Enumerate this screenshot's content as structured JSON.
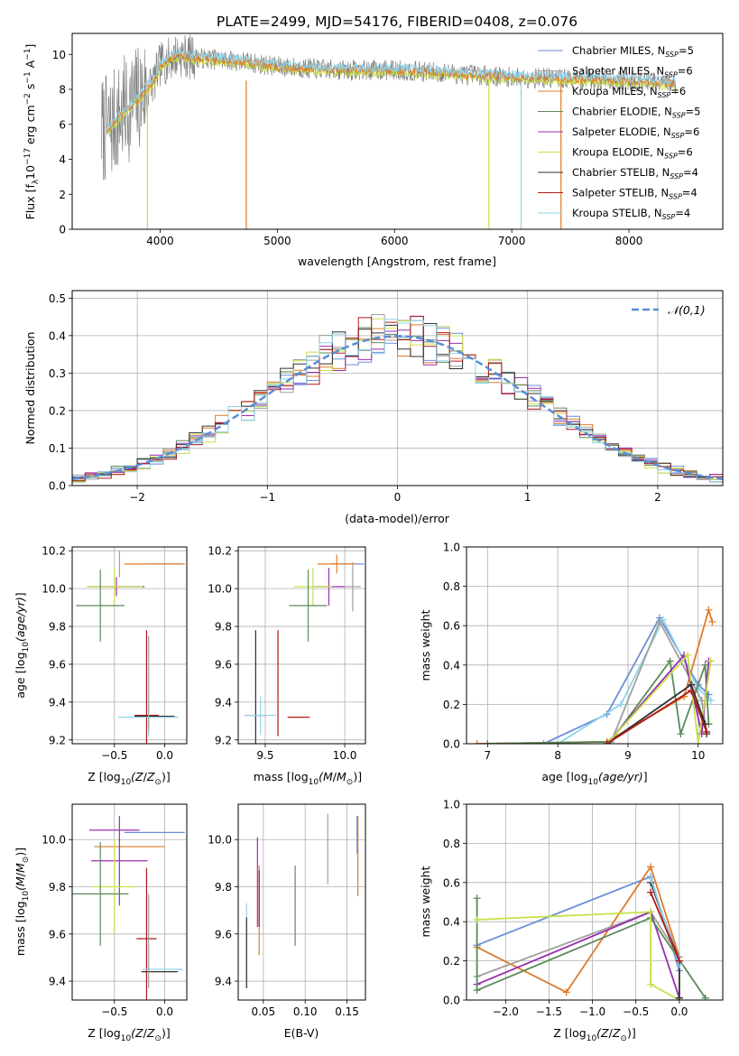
{
  "figure_title": "PLATE=2499, MJD=54176, FIBERID=0408, z=0.076",
  "series_styles": [
    {
      "name": "Chabrier MILES, N_SSP=5",
      "label_base": "Chabrier MILES, N",
      "label_sub": "SSP",
      "label_tail": "=5",
      "color": "#6a8fd6"
    },
    {
      "name": "Salpeter MILES, N_SSP=6",
      "label_base": "Salpeter MILES, N",
      "label_sub": "SSP",
      "label_tail": "=6",
      "color": "#a0a0a0"
    },
    {
      "name": "Kroupa MILES, N_SSP=6",
      "label_base": "Kroupa MILES, N",
      "label_sub": "SSP",
      "label_tail": "=6",
      "color": "#e07b28"
    },
    {
      "name": "Chabrier ELODIE, N_SSP=5",
      "label_base": "Chabrier ELODIE, N",
      "label_sub": "SSP",
      "label_tail": "=5",
      "color": "#5a8a5a"
    },
    {
      "name": "Salpeter ELODIE, N_SSP=6",
      "label_base": "Salpeter ELODIE, N",
      "label_sub": "SSP",
      "label_tail": "=6",
      "color": "#9a2fb0"
    },
    {
      "name": "Kroupa ELODIE, N_SSP=6",
      "label_base": "Kroupa ELODIE, N",
      "label_sub": "SSP",
      "label_tail": "=6",
      "color": "#c8e04a"
    },
    {
      "name": "Chabrier STELIB, N_SSP=4",
      "label_base": "Chabrier STELIB, N",
      "label_sub": "SSP",
      "label_tail": "=4",
      "color": "#303030"
    },
    {
      "name": "Salpeter STELIB, N_SSP=4",
      "label_base": "Salpeter STELIB, N",
      "label_sub": "SSP",
      "label_tail": "=4",
      "color": "#b01818"
    },
    {
      "name": "Kroupa STELIB, N_SSP=4",
      "label_base": "Kroupa STELIB, N",
      "label_sub": "SSP",
      "label_tail": "=4",
      "color": "#8fd3e8"
    }
  ],
  "chart_data": [
    {
      "id": "spectrum",
      "type": "line",
      "xlabel": "wavelength [Angstrom, rest frame]",
      "ylabel": "Flux [f_λ 10^-17 erg cm^-2 s^-1 A^-1]",
      "xlim": [
        3250,
        8800
      ],
      "ylim": [
        0,
        11.2
      ],
      "xticks": [
        4000,
        5000,
        6000,
        7000,
        8000
      ],
      "yticks": [
        0,
        2,
        4,
        6,
        8,
        10
      ],
      "grid": false,
      "legend": "upper right",
      "data_color": "#808080",
      "data_range": [
        3500,
        8400
      ],
      "model_profile": {
        "x": [
          3550,
          3600,
          3700,
          3800,
          3850,
          3950,
          4000,
          4150,
          4300,
          4500,
          4700,
          5000,
          5500,
          6000,
          6500,
          7000,
          7500,
          8000,
          8400
        ],
        "y": [
          5.7,
          6.0,
          6.8,
          7.4,
          7.8,
          8.5,
          9.4,
          10.0,
          9.8,
          9.7,
          9.6,
          9.3,
          9.1,
          9.1,
          8.9,
          8.7,
          8.6,
          8.5,
          8.3
        ]
      },
      "spikes": [
        {
          "x": 3892,
          "series": 5
        },
        {
          "x": 4735,
          "series": 2
        },
        {
          "x": 6805,
          "series": 5
        },
        {
          "x": 7080,
          "series": 8
        },
        {
          "x": 7420,
          "series": 2
        }
      ]
    },
    {
      "id": "residuals",
      "type": "bar",
      "xlabel": "(data-model)/error",
      "ylabel": "Normed distribution",
      "xlim": [
        -2.5,
        2.5
      ],
      "ylim": [
        0,
        0.52
      ],
      "xticks": [
        -2,
        -1,
        0,
        1,
        2
      ],
      "yticks": [
        0.0,
        0.1,
        0.2,
        0.3,
        0.4,
        0.5
      ],
      "bin_width": 0.1,
      "grid": true,
      "reference_curve": {
        "label": "𝒩(0,1)",
        "mean": 0,
        "sigma": 1,
        "color": "#5b8dd6"
      },
      "legend": "upper right"
    },
    {
      "id": "age-vs-Z",
      "type": "scatter",
      "xlabel": "Z [log10(Z/Z⊙)]",
      "ylabel": "age [log10(age/yr)]",
      "xlim": [
        -0.92,
        0.22
      ],
      "ylim": [
        9.18,
        10.22
      ],
      "xticks": [
        -0.5,
        0.0
      ],
      "yticks": [
        9.2,
        9.4,
        9.6,
        9.8,
        10.0,
        10.2
      ],
      "grid": true,
      "points": [
        {
          "series": 0,
          "x": 0.0,
          "y": 10.13,
          "xerr": 0.15,
          "yerr": 0.0
        },
        {
          "series": 2,
          "x": -0.1,
          "y": 10.13,
          "xerr": 0.3,
          "yerr": 0.0
        },
        {
          "series": 4,
          "x": -0.48,
          "y": 10.01,
          "xerr": 0.28,
          "yerr": 0.05
        },
        {
          "series": 5,
          "x": -0.5,
          "y": 10.01,
          "xerr": 0.28,
          "yerr": 0.1
        },
        {
          "series": 1,
          "x": -0.45,
          "y": 10.13,
          "xerr": 0.0,
          "yerr": 0.07
        },
        {
          "series": 3,
          "x": -0.64,
          "y": 9.91,
          "xerr": 0.24,
          "yerr": 0.19
        },
        {
          "series": 7,
          "x": -0.18,
          "y": 9.33,
          "xerr": 0.12,
          "yerr": 0.45
        },
        {
          "series": 6,
          "x": -0.1,
          "y": 9.325,
          "xerr": 0.2,
          "yerr": 0.0
        },
        {
          "series": 8,
          "x": -0.16,
          "y": 9.32,
          "xerr": 0.3,
          "yerr": 0.1
        },
        {
          "series": 1,
          "x": -0.16,
          "y": 9.5,
          "xerr": 0.0,
          "yerr": 0.25
        }
      ]
    },
    {
      "id": "age-vs-mass",
      "type": "scatter",
      "xlabel": "mass [log10(M/M⊙)]",
      "ylabel": "",
      "xlim": [
        9.33,
        10.13
      ],
      "ylim": [
        9.18,
        10.22
      ],
      "xticks": [
        9.5,
        10.0
      ],
      "yticks": [
        9.2,
        9.4,
        9.6,
        9.8,
        10.0,
        10.2
      ],
      "grid": true,
      "points": [
        {
          "series": 0,
          "x": 10.02,
          "y": 10.13,
          "xerr": 0.1,
          "yerr": 0.0
        },
        {
          "series": 2,
          "x": 9.95,
          "y": 10.13,
          "xerr": 0.12,
          "yerr": 0.05
        },
        {
          "series": 4,
          "x": 9.9,
          "y": 10.01,
          "xerr": 0.1,
          "yerr": 0.1
        },
        {
          "series": 5,
          "x": 9.8,
          "y": 10.01,
          "xerr": 0.12,
          "yerr": 0.1
        },
        {
          "series": 1,
          "x": 10.05,
          "y": 10.01,
          "xerr": 0.05,
          "yerr": 0.13
        },
        {
          "series": 3,
          "x": 9.77,
          "y": 9.91,
          "xerr": 0.12,
          "yerr": 0.19
        },
        {
          "series": 6,
          "x": 9.44,
          "y": 9.33,
          "xerr": 0.07,
          "yerr": 0.45
        },
        {
          "series": 8,
          "x": 9.47,
          "y": 9.33,
          "xerr": 0.1,
          "yerr": 0.1
        },
        {
          "series": 7,
          "x": 9.58,
          "y": 9.5,
          "xerr": 0.0,
          "yerr": 0.28
        },
        {
          "series": 7,
          "x": 9.71,
          "y": 9.32,
          "xerr": 0.07,
          "yerr": 0.0
        }
      ]
    },
    {
      "id": "massweight-vs-age",
      "type": "line",
      "xlabel": "age [log10(age/yr)]",
      "ylabel": "mass weight",
      "xlim": [
        6.7,
        10.35
      ],
      "ylim": [
        0,
        1.0
      ],
      "xticks": [
        7,
        8,
        9,
        10
      ],
      "yticks": [
        0.0,
        0.2,
        0.4,
        0.6,
        0.8,
        1.0
      ],
      "grid": true,
      "series": [
        {
          "series": 0,
          "x": [
            7.8,
            8.7,
            9.45,
            10.0,
            10.15
          ],
          "y": [
            0.0,
            0.15,
            0.64,
            0.3,
            0.25
          ]
        },
        {
          "series": 8,
          "x": [
            8.0,
            8.9,
            9.5,
            10.0,
            10.18
          ],
          "y": [
            0.0,
            0.2,
            0.63,
            0.28,
            0.22
          ]
        },
        {
          "series": 1,
          "x": [
            8.75,
            9.45,
            10.05,
            10.1
          ],
          "y": [
            0.0,
            0.62,
            0.22,
            0.1
          ]
        },
        {
          "series": 2,
          "x": [
            6.85,
            8.7,
            9.8,
            10.15,
            10.2
          ],
          "y": [
            0.0,
            0.01,
            0.24,
            0.68,
            0.62
          ]
        },
        {
          "series": 3,
          "x": [
            7.0,
            8.75,
            9.6,
            9.75,
            10.1,
            10.15
          ],
          "y": [
            0.0,
            0.01,
            0.42,
            0.05,
            0.4,
            0.1
          ]
        },
        {
          "series": 4,
          "x": [
            8.7,
            9.8,
            10.05,
            10.15
          ],
          "y": [
            0.0,
            0.45,
            0.05,
            0.42
          ]
        },
        {
          "series": 5,
          "x": [
            8.7,
            9.85,
            10.0,
            10.18
          ],
          "y": [
            0.0,
            0.45,
            0.0,
            0.42
          ]
        },
        {
          "series": 6,
          "x": [
            8.7,
            9.9,
            10.1,
            10.12
          ],
          "y": [
            0.0,
            0.3,
            0.1,
            0.05
          ]
        },
        {
          "series": 7,
          "x": [
            8.7,
            9.9,
            10.12
          ],
          "y": [
            0.0,
            0.27,
            0.06
          ]
        }
      ]
    },
    {
      "id": "mass-vs-Z",
      "type": "scatter",
      "xlabel": "Z [log10(Z/Z⊙)]",
      "ylabel": "mass [log10(M/M⊙)]",
      "xlim": [
        -0.92,
        0.22
      ],
      "ylim": [
        9.32,
        10.15
      ],
      "xticks": [
        -0.5,
        0.0
      ],
      "yticks": [
        9.4,
        9.6,
        9.8,
        10.0
      ],
      "grid": true,
      "points": [
        {
          "series": 0,
          "x": -0.1,
          "y": 10.03,
          "xerr": 0.3,
          "yerr": 0.0
        },
        {
          "series": 4,
          "x": -0.5,
          "y": 10.04,
          "xerr": 0.25,
          "yerr": 0.0
        },
        {
          "series": 2,
          "x": -0.35,
          "y": 9.97,
          "xerr": 0.35,
          "yerr": 0.0
        },
        {
          "series": 4,
          "x": -0.45,
          "y": 9.91,
          "xerr": 0.28,
          "yerr": 0.19
        },
        {
          "series": 5,
          "x": -0.5,
          "y": 9.8,
          "xerr": 0.22,
          "yerr": 0.2
        },
        {
          "series": 3,
          "x": -0.64,
          "y": 9.77,
          "xerr": 0.28,
          "yerr": 0.22
        },
        {
          "series": 7,
          "x": -0.18,
          "y": 9.58,
          "xerr": 0.1,
          "yerr": 0.3
        },
        {
          "series": 6,
          "x": -0.05,
          "y": 9.44,
          "xerr": 0.18,
          "yerr": 0.0
        },
        {
          "series": 8,
          "x": -0.02,
          "y": 9.45,
          "xerr": 0.2,
          "yerr": 0.0
        },
        {
          "series": 1,
          "x": -0.16,
          "y": 9.57,
          "xerr": 0.0,
          "yerr": 0.2
        }
      ]
    },
    {
      "id": "mass-vs-EBV",
      "type": "scatter",
      "xlabel": "E(B-V)",
      "ylabel": "",
      "xlim": [
        0.02,
        0.172
      ],
      "ylim": [
        9.32,
        10.15
      ],
      "xticks": [
        0.05,
        0.1,
        0.15
      ],
      "yticks": [
        9.4,
        9.6,
        9.8,
        10.0
      ],
      "grid": true,
      "points": [
        {
          "series": 8,
          "x": 0.03,
          "y": 9.55,
          "xerr": 0.0,
          "yerr": 0.18
        },
        {
          "series": 6,
          "x": 0.03,
          "y": 9.52,
          "xerr": 0.0,
          "yerr": 0.15
        },
        {
          "series": 4,
          "x": 0.043,
          "y": 9.82,
          "xerr": 0.0,
          "yerr": 0.19
        },
        {
          "series": 2,
          "x": 0.045,
          "y": 9.7,
          "xerr": 0.0,
          "yerr": 0.19
        },
        {
          "series": 7,
          "x": 0.045,
          "y": 9.75,
          "xerr": 0.0,
          "yerr": 0.12
        },
        {
          "series": 3,
          "x": 0.088,
          "y": 9.72,
          "xerr": 0.0,
          "yerr": 0.17
        },
        {
          "series": 1,
          "x": 0.127,
          "y": 9.96,
          "xerr": 0.0,
          "yerr": 0.15
        },
        {
          "series": 2,
          "x": 0.163,
          "y": 9.93,
          "xerr": 0.0,
          "yerr": 0.17
        },
        {
          "series": 0,
          "x": 0.162,
          "y": 10.02,
          "xerr": 0.0,
          "yerr": 0.08
        }
      ]
    },
    {
      "id": "massweight-vs-Z",
      "type": "line",
      "xlabel": "Z [log10(Z/Z⊙)]",
      "ylabel": "mass weight",
      "xlim": [
        -2.45,
        0.5
      ],
      "ylim": [
        0,
        1.0
      ],
      "xticks": [
        -2.0,
        -1.5,
        -1.0,
        -0.5,
        0.0
      ],
      "yticks": [
        0.0,
        0.2,
        0.4,
        0.6,
        0.8,
        1.0
      ],
      "grid": true,
      "series": [
        {
          "series": 0,
          "x": [
            -2.33,
            -0.33,
            0.0
          ],
          "y": [
            0.28,
            0.63,
            0.15
          ]
        },
        {
          "series": 2,
          "x": [
            -2.33,
            -1.3,
            -0.33,
            0.0
          ],
          "y": [
            0.27,
            0.04,
            0.68,
            0.22
          ]
        },
        {
          "series": 1,
          "x": [
            -2.33,
            -0.33,
            0.0
          ],
          "y": [
            0.12,
            0.45,
            0.22
          ]
        },
        {
          "series": 4,
          "x": [
            -2.33,
            -0.33,
            0.0
          ],
          "y": [
            0.08,
            0.45,
            0.01
          ]
        },
        {
          "series": 3,
          "x": [
            -2.33,
            -2.33,
            -0.33,
            0.3
          ],
          "y": [
            0.52,
            0.05,
            0.42,
            0.01
          ]
        },
        {
          "series": 5,
          "x": [
            -2.33,
            -0.33,
            -0.33,
            0.0
          ],
          "y": [
            0.41,
            0.45,
            0.08,
            0.0
          ]
        },
        {
          "series": 6,
          "x": [
            -0.33,
            0.0,
            0.0
          ],
          "y": [
            0.6,
            0.2,
            0.01
          ]
        },
        {
          "series": 8,
          "x": [
            -0.33,
            0.0
          ],
          "y": [
            0.62,
            0.18
          ]
        },
        {
          "series": 7,
          "x": [
            -0.33,
            0.0
          ],
          "y": [
            0.55,
            0.2
          ]
        }
      ]
    }
  ]
}
